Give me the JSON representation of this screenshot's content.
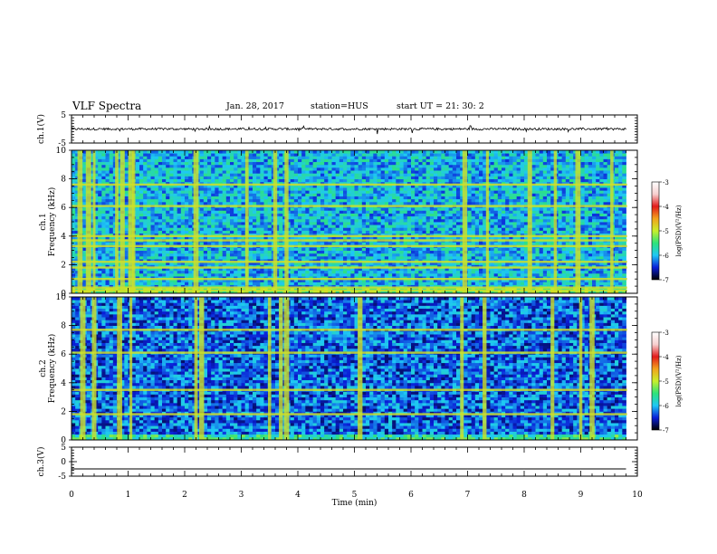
{
  "header": {
    "title": "VLF Spectra",
    "date": "Jan. 28, 2017",
    "station": "station=HUS",
    "start": "start  UT =   21: 30: 2"
  },
  "colors": {
    "axis": "#000000",
    "colorbar_stops": [
      "#000000",
      "#0a1fd8",
      "#1ec8f5",
      "#2ee37a",
      "#c8ef2a",
      "#f2a21c",
      "#e21b1b",
      "#f7cfcf",
      "#ffffff"
    ]
  },
  "chart_data": [
    {
      "type": "line",
      "panel": "ch1-waveform",
      "ylabel": "ch.1(V)",
      "ylim": [
        -5,
        5
      ],
      "yticks": [
        5,
        -5
      ],
      "xlim": [
        0,
        10
      ],
      "series": [
        {
          "x": [
            0,
            9.8
          ],
          "values": [
            0,
            0
          ],
          "noise_amplitude_v": 0.4
        }
      ]
    },
    {
      "type": "heatmap",
      "panel": "ch1-spectrogram",
      "ylabel": "Frequency (kHz)",
      "channel_label": "ch.1",
      "ylim": [
        0,
        10
      ],
      "yticks": [
        0,
        2,
        4,
        6,
        8,
        10
      ],
      "xlim": [
        0,
        10
      ],
      "colorbar": {
        "label": "log(PSD)(V²/Hz)",
        "range": [
          -7,
          -3
        ],
        "ticks": [
          -3,
          -4,
          -5,
          -6,
          -7
        ]
      },
      "background_level": -6.0,
      "broadband_bursts_min": [
        0.15,
        0.3,
        0.4,
        0.8,
        0.9,
        1.05,
        1.1,
        2.2,
        3.1,
        3.6,
        3.8,
        6.95,
        7.35,
        8.1,
        8.55,
        8.95,
        9.55
      ],
      "narrowband_lines_khz": [
        0.2,
        0.4,
        1.0,
        1.8,
        2.2,
        3.3,
        3.7,
        4.0,
        6.1,
        7.6
      ]
    },
    {
      "type": "heatmap",
      "panel": "ch2-spectrogram",
      "ylabel": "Frequency (kHz)",
      "channel_label": "ch.2",
      "ylim": [
        0,
        10
      ],
      "yticks": [
        0,
        2,
        4,
        6,
        8,
        10
      ],
      "xlim": [
        0,
        10
      ],
      "colorbar": {
        "label": "log(PSD)(V²/Hz)",
        "range": [
          -7,
          -3
        ],
        "ticks": [
          -3,
          -4,
          -5,
          -6,
          -7
        ]
      },
      "background_level": -6.3,
      "broadband_bursts_min": [
        0.2,
        0.4,
        0.85,
        1.05,
        2.2,
        2.3,
        3.5,
        3.7,
        3.8,
        5.1,
        6.9,
        7.3,
        8.5,
        9.0,
        9.2
      ],
      "narrowband_lines_khz": [
        1.8,
        3.5,
        6.1,
        7.7
      ]
    },
    {
      "type": "line",
      "panel": "ch3-waveform",
      "ylabel": "ch.3(V)",
      "ylim": [
        -5,
        5
      ],
      "yticks": [
        5,
        0,
        -5
      ],
      "xlim": [
        0,
        10
      ],
      "xlabel": "Time (min)",
      "xticks": [
        0,
        1,
        2,
        3,
        4,
        5,
        6,
        7,
        8,
        9,
        10
      ],
      "series": [
        {
          "x": [
            0,
            9.8
          ],
          "values": [
            -2.5,
            -2.5
          ]
        }
      ]
    }
  ]
}
